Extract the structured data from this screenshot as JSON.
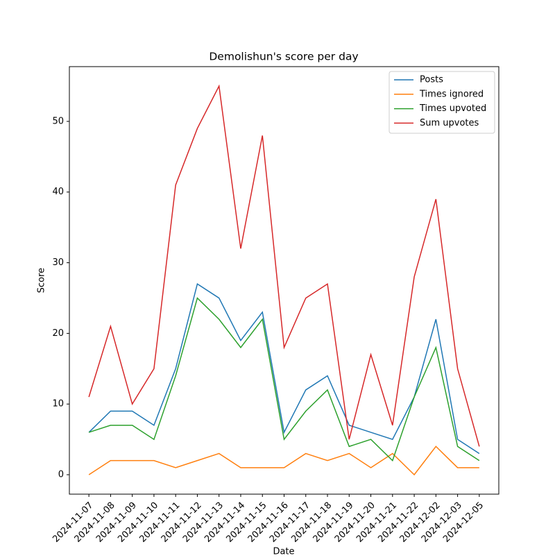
{
  "chart_data": {
    "type": "line",
    "title": "Demolishun's score per day",
    "xlabel": "Date",
    "ylabel": "Score",
    "categories": [
      "2024-11-07",
      "2024-11-08",
      "2024-11-09",
      "2024-11-10",
      "2024-11-11",
      "2024-11-12",
      "2024-11-13",
      "2024-11-14",
      "2024-11-15",
      "2024-11-16",
      "2024-11-17",
      "2024-11-18",
      "2024-11-19",
      "2024-11-20",
      "2024-11-21",
      "2024-11-22",
      "2024-12-02",
      "2024-12-03",
      "2024-12-05"
    ],
    "series": [
      {
        "name": "Posts",
        "color": "#1f77b4",
        "values": [
          6,
          9,
          9,
          7,
          15,
          27,
          25,
          19,
          23,
          6,
          12,
          14,
          7,
          6,
          5,
          11,
          22,
          5,
          3
        ]
      },
      {
        "name": "Times ignored",
        "color": "#ff7f0e",
        "values": [
          0,
          2,
          2,
          2,
          1,
          2,
          3,
          1,
          1,
          1,
          3,
          2,
          3,
          1,
          3,
          0,
          4,
          1,
          1
        ]
      },
      {
        "name": "Times upvoted",
        "color": "#2ca02c",
        "values": [
          6,
          7,
          7,
          5,
          14,
          25,
          22,
          18,
          22,
          5,
          9,
          12,
          4,
          5,
          2,
          11,
          18,
          4,
          2
        ]
      },
      {
        "name": "Sum upvotes",
        "color": "#d62728",
        "values": [
          11,
          21,
          10,
          15,
          41,
          49,
          55,
          32,
          48,
          18,
          25,
          27,
          5,
          17,
          7,
          28,
          39,
          15,
          4
        ]
      }
    ],
    "ylim": [
      -2.75,
      57.75
    ],
    "yticks": [
      0,
      10,
      20,
      30,
      40,
      50
    ],
    "legend": "upper right",
    "grid": false
  }
}
